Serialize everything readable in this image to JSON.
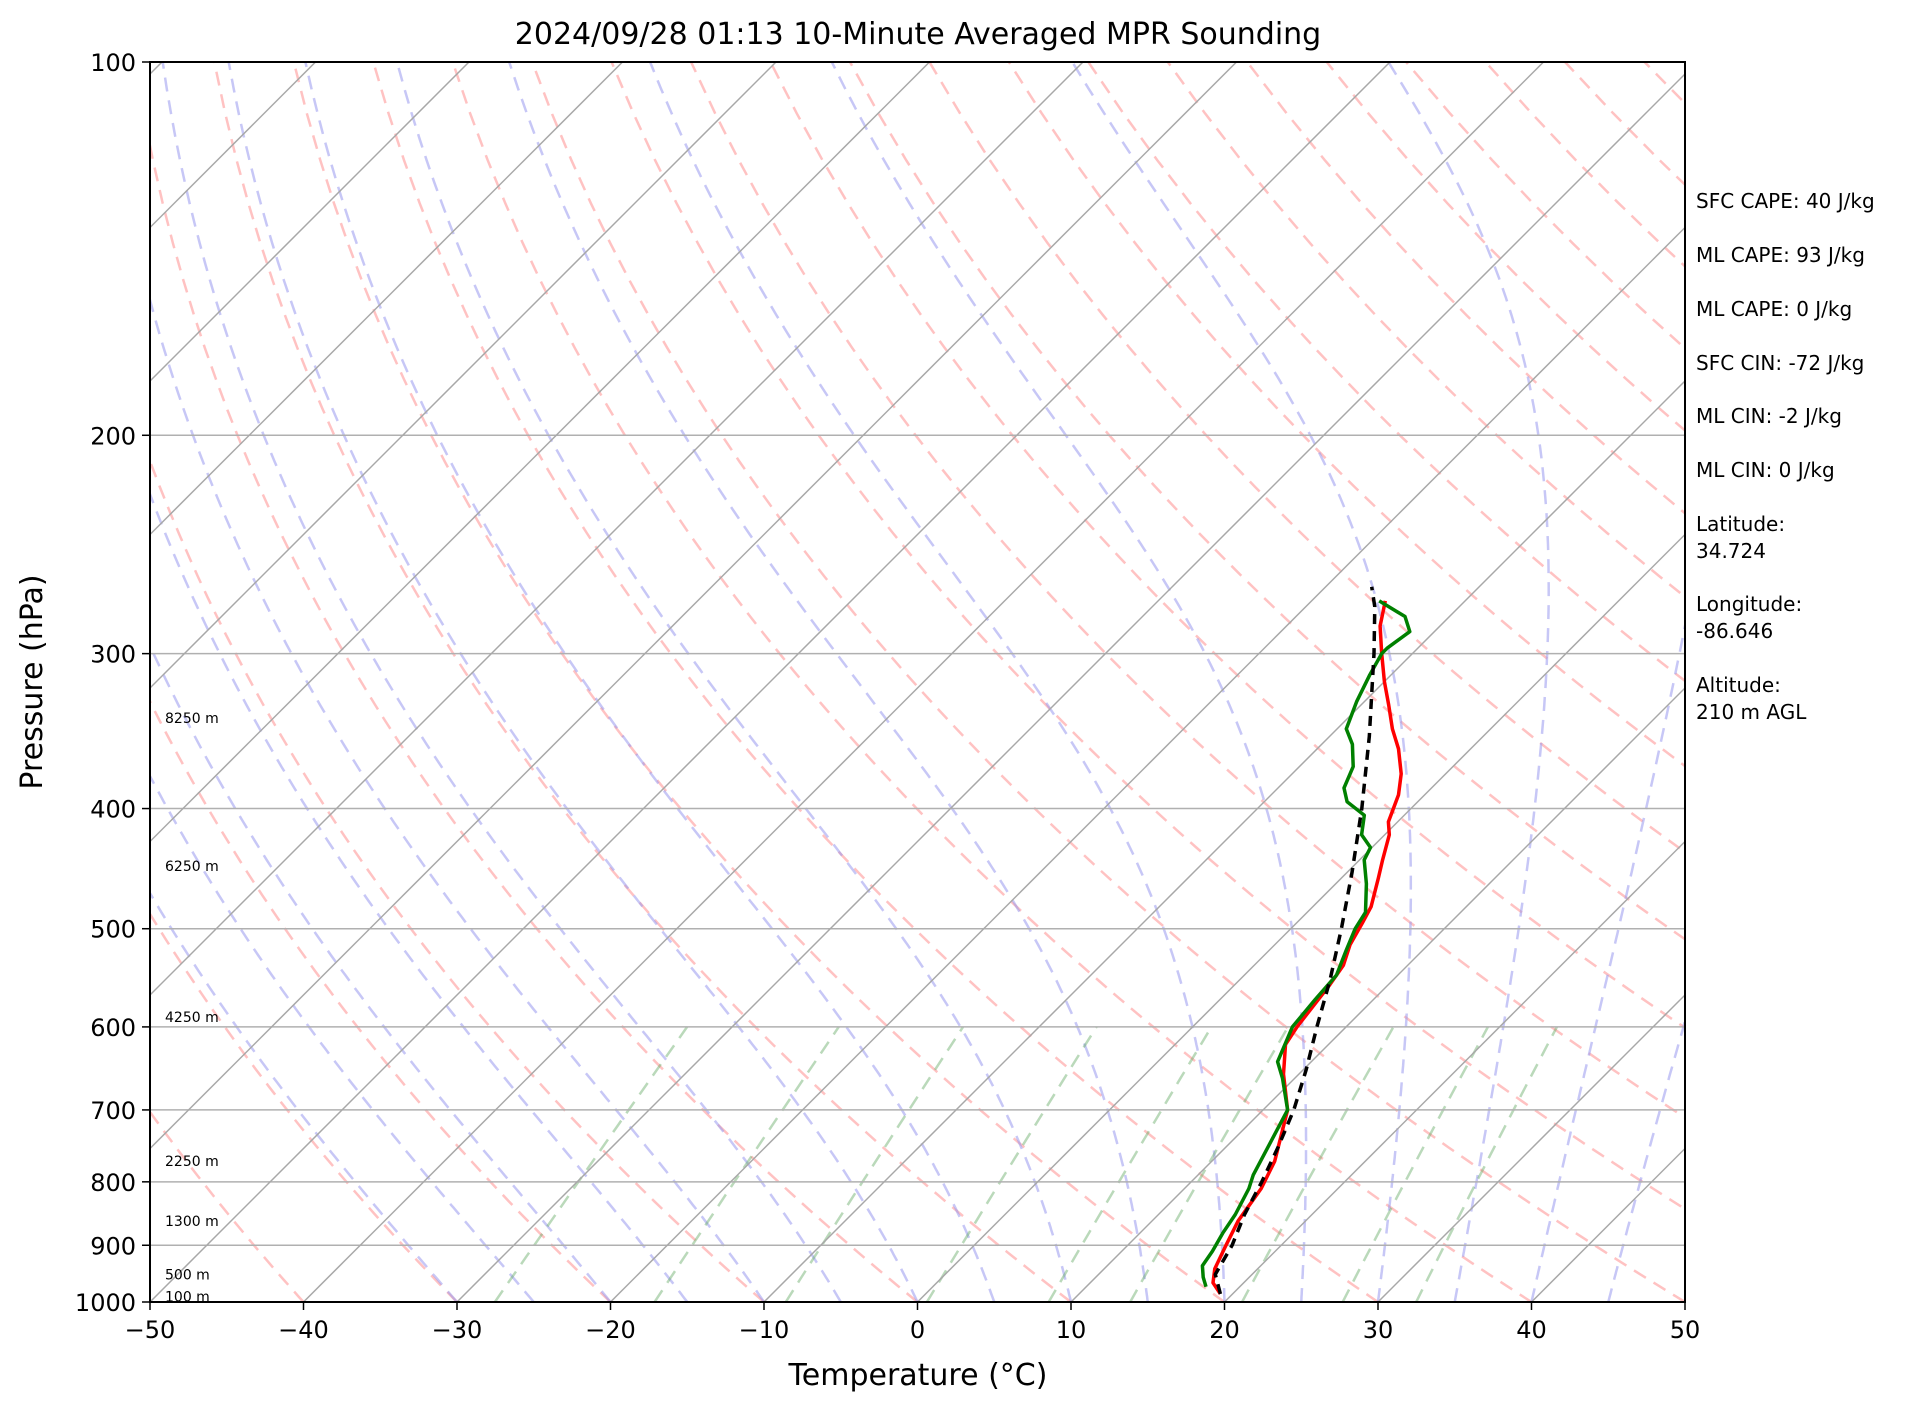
{
  "chart_data": {
    "type": "line",
    "title": "2024/09/28 01:13 10-Minute Averaged MPR Sounding",
    "xlabel": "Temperature (°C)",
    "ylabel": "Pressure (hPa)",
    "xlim": [
      -50,
      50
    ],
    "ylim": [
      1000,
      100
    ],
    "y_scale": "log",
    "skew": true,
    "grid": true,
    "x_ticks": [
      "−50",
      "−40",
      "−30",
      "−20",
      "−10",
      "0",
      "10",
      "20",
      "30",
      "40",
      "50"
    ],
    "y_ticks": [
      "100",
      "200",
      "300",
      "400",
      "500",
      "600",
      "700",
      "800",
      "900",
      "1000"
    ],
    "height_labels": [
      "8250 m",
      "6250 m",
      "4250 m",
      "2250 m",
      "1300 m",
      "500 m",
      "100 m"
    ],
    "series": [
      {
        "color": "#ff0000",
        "points": [
          [
            19.2,
            985
          ],
          [
            18.0,
            965
          ],
          [
            17.2,
            940
          ],
          [
            16.4,
            900
          ],
          [
            15.6,
            860
          ],
          [
            15.0,
            810
          ],
          [
            14.1,
            770
          ],
          [
            11.6,
            700
          ],
          [
            9.0,
            655
          ],
          [
            7.2,
            620
          ],
          [
            6.8,
            600
          ],
          [
            6.2,
            555
          ],
          [
            5.8,
            535
          ],
          [
            4.9,
            515
          ],
          [
            4.3,
            495
          ],
          [
            3.8,
            480
          ],
          [
            2.4,
            455
          ],
          [
            1.5,
            440
          ],
          [
            0.3,
            420
          ],
          [
            -0.6,
            410
          ],
          [
            -1.7,
            390
          ],
          [
            -2.9,
            375
          ],
          [
            -4.7,
            358
          ],
          [
            -6.4,
            345
          ],
          [
            -8.2,
            330
          ],
          [
            -10.0,
            316
          ],
          [
            -12.0,
            300
          ],
          [
            -13.9,
            285
          ],
          [
            -15.2,
            272
          ]
        ]
      },
      {
        "color": "#008000",
        "points": [
          [
            17.8,
            972
          ],
          [
            17.0,
            955
          ],
          [
            16.2,
            935
          ],
          [
            15.9,
            910
          ],
          [
            15.4,
            880
          ],
          [
            15.0,
            850
          ],
          [
            14.2,
            810
          ],
          [
            13.6,
            790
          ],
          [
            11.6,
            700
          ],
          [
            9.2,
            660
          ],
          [
            7.8,
            640
          ],
          [
            6.5,
            600
          ],
          [
            6.2,
            570
          ],
          [
            6.0,
            545
          ],
          [
            5.0,
            520
          ],
          [
            4.2,
            500
          ],
          [
            3.8,
            485
          ],
          [
            2.0,
            460
          ],
          [
            0.3,
            440
          ],
          [
            -0.1,
            430
          ],
          [
            -1.5,
            420
          ],
          [
            -2.6,
            405
          ],
          [
            -4.6,
            395
          ],
          [
            -5.7,
            385
          ],
          [
            -6.5,
            370
          ],
          [
            -8.0,
            355
          ],
          [
            -9.4,
            345
          ],
          [
            -10.5,
            328
          ],
          [
            -11.4,
            312
          ],
          [
            -12.0,
            300
          ],
          [
            -12.0,
            297
          ],
          [
            -11.6,
            288
          ],
          [
            -12.9,
            280
          ],
          [
            -15.6,
            272
          ]
        ]
      },
      {
        "color": "#000000",
        "dashed": true,
        "points": [
          [
            19.2,
            985
          ],
          [
            17.6,
            950
          ],
          [
            16.8,
            900
          ],
          [
            15.6,
            850
          ],
          [
            14.6,
            800
          ],
          [
            13.4,
            750
          ],
          [
            12.0,
            700
          ],
          [
            10.2,
            650
          ],
          [
            8.1,
            600
          ],
          [
            5.9,
            550
          ],
          [
            3.3,
            500
          ],
          [
            0.3,
            450
          ],
          [
            -3.2,
            400
          ],
          [
            -7.4,
            350
          ],
          [
            -12.5,
            300
          ],
          [
            -15.5,
            275
          ],
          [
            -17.0,
            265
          ]
        ]
      }
    ]
  },
  "info_panel": [
    "SFC CAPE: 40 J/kg",
    "ML CAPE: 93 J/kg",
    "ML CAPE: 0 J/kg",
    "SFC CIN: -72 J/kg",
    "ML CIN: -2 J/kg",
    "ML CIN: 0 J/kg",
    "Latitude:",
    "34.724",
    "Longitude:",
    "-86.646",
    "Altitude:",
    "210 m AGL"
  ]
}
